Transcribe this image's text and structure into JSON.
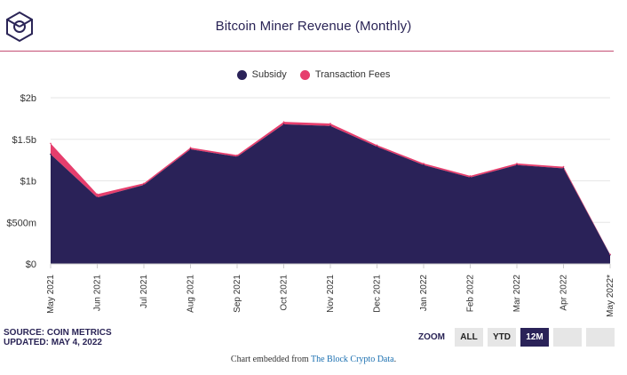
{
  "header": {
    "title": "Bitcoin Miner Revenue (Monthly)"
  },
  "colors": {
    "subsidy": "#2a2258",
    "fees": "#e63e6d",
    "rule": "#c44f74",
    "grid": "#e6e6e6"
  },
  "chart_data": {
    "type": "area",
    "stacked": true,
    "title": "Bitcoin Miner Revenue (Monthly)",
    "categories": [
      "May 2021",
      "Jun 2021",
      "Jul 2021",
      "Aug 2021",
      "Sep 2021",
      "Oct 2021",
      "Nov 2021",
      "Dec 2021",
      "Jan 2022",
      "Feb 2022",
      "Mar 2022",
      "Apr 2022",
      "May 2022*"
    ],
    "series": [
      {
        "name": "Subsidy",
        "values": [
          1.32,
          0.8,
          0.95,
          1.38,
          1.29,
          1.68,
          1.66,
          1.41,
          1.19,
          1.04,
          1.19,
          1.15,
          0.11
        ]
      },
      {
        "name": "Transaction Fees",
        "values": [
          0.13,
          0.04,
          0.02,
          0.02,
          0.02,
          0.03,
          0.03,
          0.02,
          0.02,
          0.02,
          0.02,
          0.02,
          0.005
        ]
      }
    ],
    "y_ticks": [
      {
        "value": 0,
        "label": "$0"
      },
      {
        "value": 0.5,
        "label": "$500m"
      },
      {
        "value": 1.0,
        "label": "$1b"
      },
      {
        "value": 1.5,
        "label": "$1.5b"
      },
      {
        "value": 2.0,
        "label": "$2b"
      }
    ],
    "ylim": [
      0,
      2.0
    ],
    "xlabel": "",
    "ylabel": "",
    "legend": "top-center",
    "grid": true
  },
  "legend": {
    "subsidy_label": "Subsidy",
    "fees_label": "Transaction Fees"
  },
  "source": {
    "line1": "SOURCE: COIN METRICS",
    "line2": "UPDATED: MAY 4, 2022"
  },
  "zoom": {
    "label": "ZOOM",
    "buttons": [
      "ALL",
      "YTD",
      "12M"
    ],
    "active": "12M"
  },
  "footer": {
    "prefix": "Chart embedded from ",
    "link_text": "The Block Crypto Data",
    "suffix": "."
  }
}
